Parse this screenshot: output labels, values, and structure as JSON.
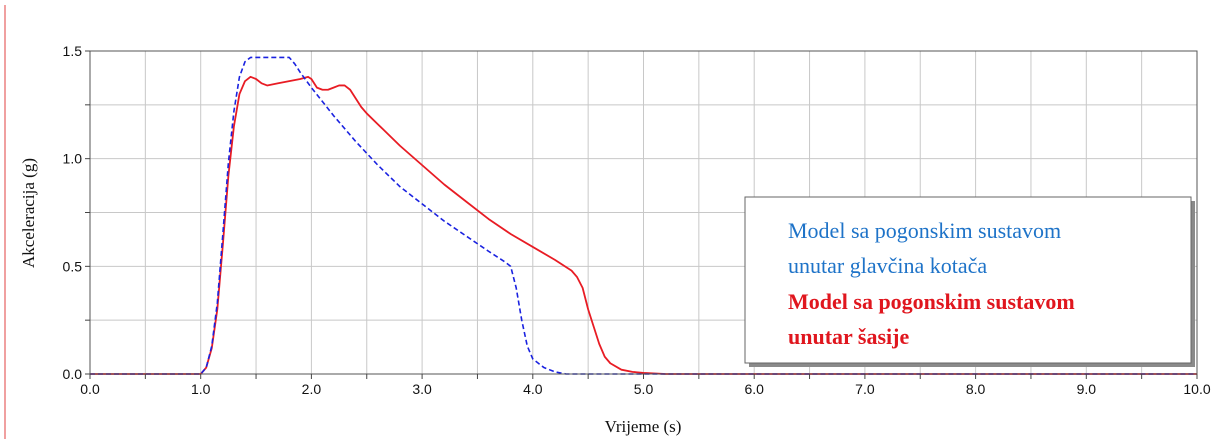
{
  "chart_data": {
    "type": "line",
    "xlabel": "Vrijeme (s)",
    "ylabel": "Akceleracija (g)",
    "xlim": [
      0,
      10
    ],
    "ylim": [
      0,
      1.5
    ],
    "x_ticks": [
      0,
      0.5,
      1,
      1.5,
      2,
      2.5,
      3,
      3.5,
      4,
      4.5,
      5,
      5.5,
      6,
      6.5,
      7,
      7.5,
      8,
      8.5,
      9,
      9.5,
      10
    ],
    "x_tick_labels": [
      "0.0",
      "1.0",
      "2.0",
      "3.0",
      "4.0",
      "5.0",
      "6.0",
      "7.0",
      "8.0",
      "9.0",
      "10.0"
    ],
    "x_tick_label_values": [
      0,
      1,
      2,
      3,
      4,
      5,
      6,
      7,
      8,
      9,
      10
    ],
    "y_ticks": [
      0,
      0.25,
      0.5,
      0.75,
      1,
      1.25,
      1.5
    ],
    "y_tick_labels": [
      "0.0",
      "0.5",
      "1.0",
      "1.5"
    ],
    "y_tick_label_values": [
      0,
      0.5,
      1,
      1.5
    ],
    "grid": true,
    "legend": {
      "placement": "bottom-right",
      "entries": [
        {
          "lines": [
            "Model sa pogonskim  sustavom",
            "unutar glavčina kotača"
          ],
          "color": "#1e73c8",
          "weight": "normal"
        },
        {
          "lines": [
            "Model sa pogonskim sustavom",
            "unutar šasije"
          ],
          "color": "#e0161e",
          "weight": "bold"
        }
      ]
    },
    "series": [
      {
        "color": "#e81c24",
        "style": "solid",
        "x": [
          0,
          1.0,
          1.05,
          1.1,
          1.15,
          1.2,
          1.25,
          1.3,
          1.35,
          1.4,
          1.45,
          1.5,
          1.55,
          1.6,
          1.7,
          1.8,
          1.9,
          1.97,
          2.0,
          2.05,
          2.1,
          2.15,
          2.2,
          2.25,
          2.3,
          2.35,
          2.4,
          2.45,
          2.5,
          2.6,
          2.8,
          3.0,
          3.2,
          3.4,
          3.6,
          3.8,
          4.0,
          4.2,
          4.35,
          4.4,
          4.45,
          4.5,
          4.55,
          4.6,
          4.65,
          4.7,
          4.8,
          4.9,
          5.0,
          5.2,
          10.0
        ],
        "y": [
          0,
          0,
          0.03,
          0.12,
          0.3,
          0.6,
          0.92,
          1.15,
          1.3,
          1.36,
          1.38,
          1.37,
          1.35,
          1.34,
          1.35,
          1.36,
          1.37,
          1.38,
          1.37,
          1.33,
          1.32,
          1.32,
          1.33,
          1.34,
          1.34,
          1.32,
          1.28,
          1.24,
          1.21,
          1.16,
          1.06,
          0.97,
          0.88,
          0.8,
          0.72,
          0.65,
          0.59,
          0.53,
          0.48,
          0.45,
          0.4,
          0.3,
          0.22,
          0.14,
          0.08,
          0.05,
          0.02,
          0.01,
          0.005,
          0,
          0
        ]
      },
      {
        "color": "#1a22e0",
        "style": "dashed",
        "x": [
          0,
          1.0,
          1.05,
          1.1,
          1.15,
          1.2,
          1.25,
          1.3,
          1.35,
          1.4,
          1.45,
          1.5,
          1.6,
          1.7,
          1.8,
          1.85,
          1.9,
          2.0,
          2.2,
          2.4,
          2.6,
          2.8,
          3.0,
          3.2,
          3.4,
          3.6,
          3.75,
          3.8,
          3.85,
          3.9,
          3.95,
          4.0,
          4.1,
          4.2,
          4.3,
          10.0
        ],
        "y": [
          0,
          0,
          0.03,
          0.13,
          0.33,
          0.65,
          0.98,
          1.22,
          1.38,
          1.45,
          1.47,
          1.47,
          1.47,
          1.47,
          1.47,
          1.44,
          1.4,
          1.33,
          1.2,
          1.08,
          0.97,
          0.87,
          0.79,
          0.71,
          0.64,
          0.57,
          0.52,
          0.5,
          0.4,
          0.25,
          0.13,
          0.07,
          0.03,
          0.01,
          0,
          0
        ]
      }
    ]
  }
}
